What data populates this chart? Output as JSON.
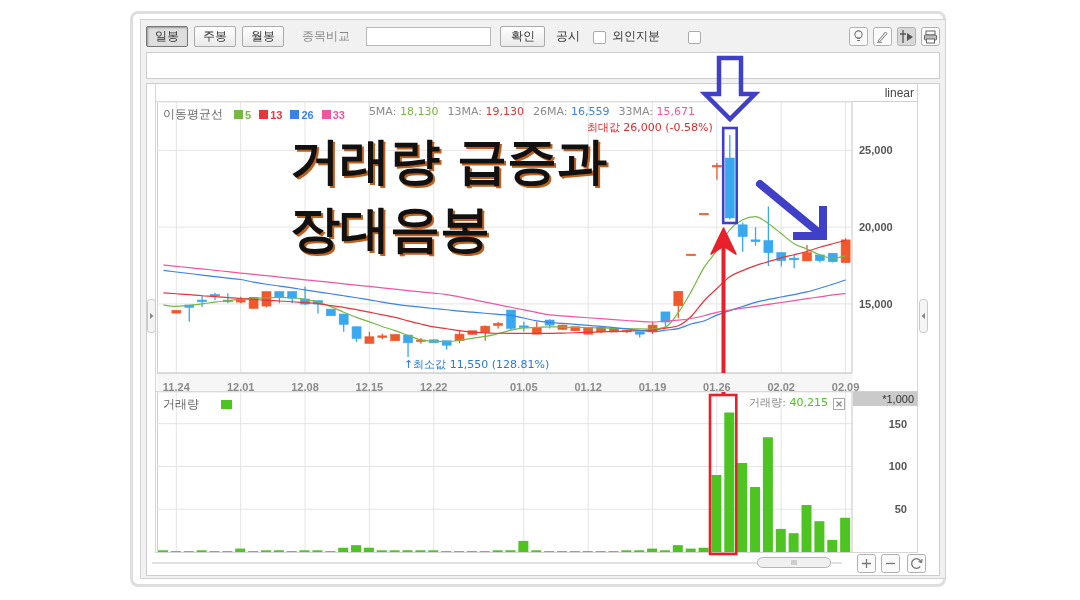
{
  "chart_data": [
    {
      "type": "other",
      "annotations": [
        "일봉",
        "주봉",
        "월봉",
        "종목비교",
        "확인",
        "공시",
        "외인지분"
      ]
    },
    {
      "type": "candlestick",
      "categories": [
        null,
        "11.24",
        null,
        null,
        null,
        null,
        "12.01",
        null,
        null,
        null,
        null,
        "12.08",
        null,
        null,
        null,
        null,
        "12.15",
        null,
        null,
        null,
        null,
        "12.22",
        null,
        null,
        null,
        null,
        null,
        null,
        "01.05",
        null,
        null,
        null,
        null,
        "01.12",
        null,
        null,
        null,
        null,
        "01.19",
        null,
        null,
        null,
        null,
        "01.26",
        null,
        null,
        null,
        null,
        "02.02",
        null,
        null,
        null,
        null,
        "02.09"
      ],
      "ohlc": [
        null,
        [
          14400,
          14600,
          14380,
          14580
        ],
        [
          14930,
          14930,
          13840,
          14780
        ],
        [
          15250,
          15510,
          14820,
          15140
        ],
        [
          15560,
          15730,
          15250,
          15490
        ],
        [
          15250,
          15690,
          15040,
          15140
        ],
        [
          15120,
          15470,
          15040,
          15250
        ],
        [
          14710,
          15430,
          14710,
          15430
        ],
        [
          14860,
          15800,
          14780,
          15800
        ],
        [
          15800,
          15800,
          15040,
          15430
        ],
        [
          15800,
          15800,
          15040,
          15370
        ],
        [
          15320,
          16120,
          14930,
          14990
        ],
        [
          15210,
          15210,
          14380,
          14990
        ],
        [
          14660,
          14660,
          14230,
          14230
        ],
        [
          14340,
          14340,
          13180,
          13670
        ],
        [
          13510,
          13510,
          12530,
          12750
        ],
        [
          12430,
          13180,
          12430,
          12860
        ],
        [
          12850,
          13050,
          12700,
          12870
        ],
        [
          12600,
          13010,
          12600,
          13010
        ],
        [
          12970,
          12970,
          11550,
          12470
        ],
        [
          12530,
          12780,
          12400,
          12600
        ],
        [
          12660,
          12660,
          12470,
          12470
        ],
        [
          12600,
          12600,
          12030,
          12310
        ],
        [
          12600,
          13290,
          12430,
          13030
        ],
        [
          13010,
          13250,
          13010,
          13250
        ],
        [
          13140,
          13600,
          12600,
          13550
        ],
        [
          13600,
          13840,
          13400,
          13730
        ],
        [
          14600,
          14600,
          13290,
          13410
        ],
        [
          13520,
          13840,
          13200,
          13450
        ],
        [
          13030,
          13840,
          13030,
          13470
        ],
        [
          13950,
          14000,
          13400,
          13620
        ],
        [
          13340,
          13650,
          13300,
          13620
        ],
        [
          13250,
          13510,
          13250,
          13510
        ],
        [
          13030,
          13470,
          13000,
          13470
        ],
        [
          13180,
          13500,
          13100,
          13470
        ],
        [
          13180,
          13400,
          13180,
          13400
        ],
        [
          13140,
          13300,
          13100,
          13230
        ],
        [
          13180,
          13180,
          12810,
          13030
        ],
        [
          13180,
          13840,
          13030,
          13620
        ],
        [
          14480,
          14480,
          13510,
          13820
        ],
        [
          14880,
          15820,
          14060,
          15820
        ],
        [
          18190,
          18190,
          18190,
          18190
        ],
        [
          20850,
          20850,
          20850,
          20850
        ],
        [
          23950,
          24180,
          23090,
          23970
        ],
        [
          24500,
          26000,
          20500,
          20600
        ],
        [
          20150,
          20300,
          18400,
          19390
        ],
        [
          19170,
          20000,
          18780,
          19060
        ],
        [
          19120,
          21350,
          17470,
          18340
        ],
        [
          18340,
          18340,
          17430,
          17820
        ],
        [
          17980,
          18190,
          17320,
          17870
        ],
        [
          17800,
          18840,
          17800,
          18340
        ],
        [
          18190,
          18190,
          17690,
          17820
        ],
        [
          18300,
          18300,
          17690,
          17750
        ],
        [
          17690,
          19280,
          17690,
          19170
        ]
      ],
      "colors": [
        null,
        "#f0582e",
        "#39a8ee",
        "#39a8ee",
        "#39a8ee",
        "#39a8ee",
        "#f0582e",
        "#f0582e",
        "#f0582e",
        "#39a8ee",
        "#39a8ee",
        "#39a8ee",
        "#39a8ee",
        "#39a8ee",
        "#39a8ee",
        "#39a8ee",
        "#f0582e",
        "#f0582e",
        "#f0582e",
        "#39a8ee",
        "#f0582e",
        "#39a8ee",
        "#39a8ee",
        "#f0582e",
        "#f0582e",
        "#f0582e",
        "#f0582e",
        "#39a8ee",
        "#39a8ee",
        "#f0582e",
        "#39a8ee",
        "#f0582e",
        "#f0582e",
        "#f0582e",
        "#f0582e",
        "#f0582e",
        "#f0582e",
        "#39a8ee",
        "#f0582e",
        "#39a8ee",
        "#f0582e",
        "#f0582e",
        "#f0582e",
        "#f0582e",
        "#39a8ee",
        "#39a8ee",
        "#39a8ee",
        "#39a8ee",
        "#39a8ee",
        "#39a8ee",
        "#f0582e",
        "#39a8ee",
        "#39a8ee",
        "#f0582e"
      ],
      "series": [
        {
          "name": "5",
          "type": "line",
          "color": "#76b843",
          "values": [
            14920,
            14840,
            14910,
            15000,
            15120,
            15210,
            15310,
            15370,
            15400,
            15420,
            15400,
            15300,
            15120,
            14820,
            14460,
            14120,
            13830,
            13530,
            13260,
            12960,
            12660,
            12570,
            12540,
            12630,
            12760,
            12880,
            13070,
            13290,
            13440,
            13470,
            13510,
            13490,
            13470,
            13450,
            13430,
            13410,
            13390,
            13370,
            13360,
            13490,
            14430,
            15800,
            17360,
            18490,
            19820,
            20480,
            20690,
            20240,
            19580,
            18920,
            18580,
            18200,
            17980,
            18130
          ]
        },
        {
          "name": "13",
          "type": "line",
          "color": "#e8343a",
          "values": [
            15720,
            15660,
            15600,
            15530,
            15480,
            15410,
            15350,
            15290,
            15230,
            15190,
            15140,
            15080,
            15020,
            14890,
            14780,
            14630,
            14460,
            14290,
            14120,
            13900,
            13690,
            13500,
            13380,
            13260,
            13160,
            13120,
            13090,
            13080,
            13080,
            13080,
            13080,
            13100,
            13120,
            13150,
            13180,
            13200,
            13230,
            13260,
            13290,
            13420,
            13580,
            14180,
            15190,
            16000,
            16770,
            17170,
            17490,
            17750,
            18000,
            18200,
            18410,
            18690,
            18920,
            19130
          ]
        },
        {
          "name": "26",
          "type": "line",
          "color": "#3b82e8",
          "values": [
            17190,
            17080,
            16980,
            16880,
            16780,
            16680,
            16590,
            16420,
            16280,
            16160,
            16040,
            15910,
            15780,
            15660,
            15530,
            15400,
            15260,
            15120,
            14980,
            14870,
            14790,
            14700,
            14620,
            14530,
            14460,
            14390,
            14320,
            14250,
            14080,
            13890,
            13790,
            13730,
            13670,
            13600,
            13540,
            13460,
            13370,
            13280,
            13190,
            13290,
            13390,
            13690,
            13890,
            14270,
            14560,
            14830,
            15100,
            15290,
            15450,
            15610,
            15780,
            16020,
            16280,
            16560
          ]
        },
        {
          "name": "33",
          "type": "line",
          "color": "#f0559f",
          "values": [
            17540,
            17450,
            17360,
            17280,
            17190,
            17100,
            17010,
            16920,
            16840,
            16750,
            16660,
            16570,
            16490,
            16400,
            16310,
            16220,
            16140,
            16050,
            15960,
            15870,
            15780,
            15700,
            15610,
            15460,
            15290,
            15120,
            14950,
            14780,
            14610,
            14450,
            14280,
            14220,
            14160,
            14100,
            14040,
            13980,
            13920,
            13860,
            13820,
            13880,
            13940,
            14050,
            14230,
            14450,
            14590,
            14720,
            14840,
            14970,
            15090,
            15210,
            15340,
            15460,
            15590,
            15670
          ]
        }
      ],
      "ylim": [
        10500,
        28150
      ],
      "yticks": [
        {
          "value": 15000,
          "label": "15,000"
        },
        {
          "value": 20000,
          "label": "20,000"
        },
        {
          "value": 25000,
          "label": "25,000"
        }
      ],
      "grid": true,
      "legend": "top left",
      "legend_title": "이동평균선",
      "annotations": [
        "거래량 급증과",
        "장대음봉",
        "5MA: 18,130",
        "13MA: 19,130",
        "26MA: 16,559",
        "33MA: 15,671",
        "최대값 26,000 (-0.58%)",
        "↑최소값 11,550 (128.81%)",
        "linear"
      ]
    },
    {
      "type": "bar",
      "categories": [
        null,
        "11.24",
        null,
        null,
        null,
        null,
        "12.01",
        null,
        null,
        null,
        null,
        "12.08",
        null,
        null,
        null,
        null,
        "12.15",
        null,
        null,
        null,
        null,
        "12.22",
        null,
        null,
        null,
        null,
        null,
        null,
        "01.05",
        null,
        null,
        null,
        null,
        "01.12",
        null,
        null,
        null,
        null,
        "01.19",
        null,
        null,
        null,
        null,
        "01.26",
        null,
        null,
        null,
        null,
        "02.02",
        null,
        null,
        null,
        null,
        "02.09"
      ],
      "series": [
        {
          "name": "거래량",
          "color": "#4dc422",
          "values": [
            2,
            1,
            1,
            2,
            1,
            1,
            4,
            1,
            2,
            2,
            1,
            2,
            2,
            1,
            5,
            8,
            5,
            2,
            2,
            2,
            2,
            2,
            1,
            1,
            1,
            1,
            2,
            2,
            13,
            2,
            1,
            1,
            1,
            1,
            1,
            1,
            2,
            2,
            4,
            2,
            8,
            4,
            5,
            90,
            163,
            104,
            76,
            134,
            27,
            22,
            55,
            36,
            14,
            40
          ]
        }
      ],
      "ylim": [
        0,
        187
      ],
      "yticks": [
        50,
        100,
        150
      ],
      "ylabel": "*1,000",
      "grid": true,
      "legend": "top left",
      "tick_labels": "y",
      "annotations": [
        "거래량: 40,215"
      ]
    }
  ]
}
